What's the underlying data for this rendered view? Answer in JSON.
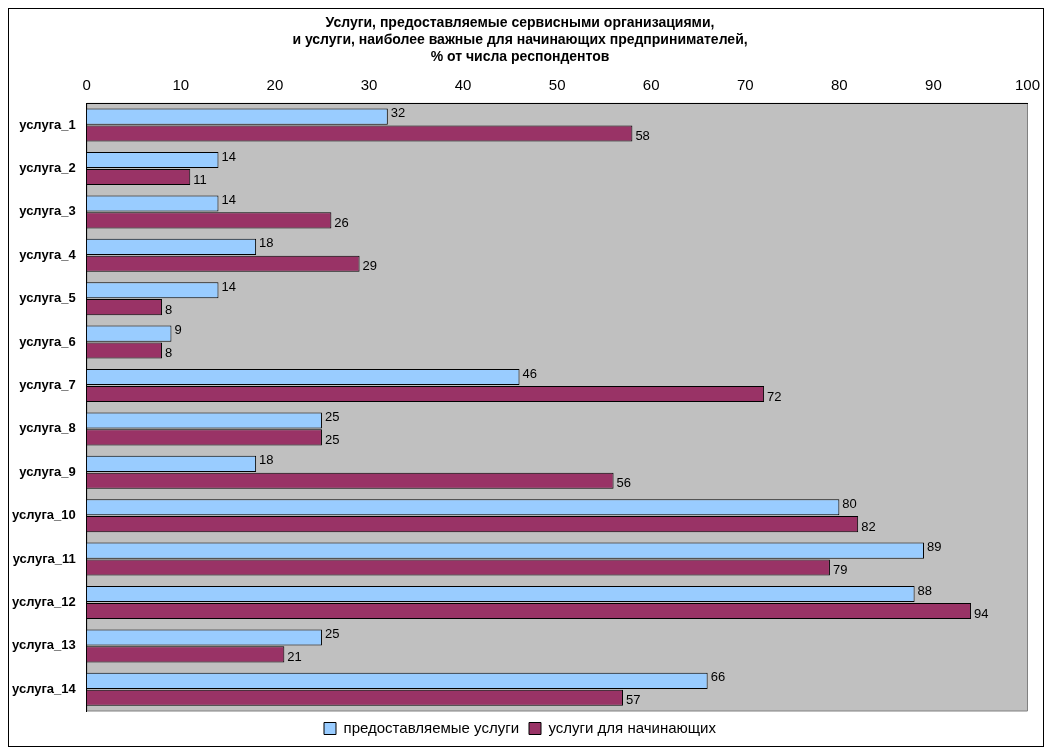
{
  "chart_data": {
    "type": "bar",
    "orientation": "horizontal",
    "title": "Услуги, предоставляемые сервисными организациями,\nи услуги, наиболее важные для начинающих предпринимателей,\n% от числа респондентов",
    "categories": [
      "услуга_1",
      "услуга_2",
      "услуга_3",
      "услуга_4",
      "услуга_5",
      "услуга_6",
      "услуга_7",
      "услуга_8",
      "услуга_9",
      "услуга_10",
      "услуга_11",
      "услуга_12",
      "услуга_13",
      "услуга_14"
    ],
    "series": [
      {
        "name": "предоставляемые услуги",
        "color": "#99ccff",
        "values": [
          32,
          14,
          14,
          18,
          14,
          9,
          46,
          25,
          18,
          80,
          89,
          88,
          25,
          66
        ]
      },
      {
        "name": "услуги для начинающих",
        "color": "#993366",
        "values": [
          58,
          11,
          26,
          29,
          8,
          8,
          72,
          25,
          56,
          82,
          79,
          94,
          21,
          57
        ]
      }
    ],
    "xlim": [
      0,
      100
    ],
    "xticks": [
      0,
      10,
      20,
      30,
      40,
      50,
      60,
      70,
      80,
      90,
      100
    ],
    "grid": false,
    "legend": "bottom",
    "data_labels": true
  }
}
